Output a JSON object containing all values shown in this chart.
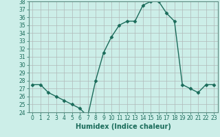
{
  "xlabel": "Humidex (Indice chaleur)",
  "x": [
    0,
    1,
    2,
    3,
    4,
    5,
    6,
    7,
    8,
    9,
    10,
    11,
    12,
    13,
    14,
    15,
    16,
    17,
    18,
    19,
    20,
    21,
    22,
    23
  ],
  "y": [
    27.5,
    27.5,
    26.5,
    26.0,
    25.5,
    25.0,
    24.5,
    23.5,
    28.0,
    31.5,
    33.5,
    35.0,
    35.5,
    35.5,
    37.5,
    38.0,
    38.0,
    36.5,
    35.5,
    27.5,
    27.0,
    26.5,
    27.5,
    27.5
  ],
  "ylim": [
    24,
    38
  ],
  "xlim_min": -0.5,
  "xlim_max": 23.5,
  "yticks": [
    24,
    25,
    26,
    27,
    28,
    29,
    30,
    31,
    32,
    33,
    34,
    35,
    36,
    37,
    38
  ],
  "xticks": [
    0,
    1,
    2,
    3,
    4,
    5,
    6,
    7,
    8,
    9,
    10,
    11,
    12,
    13,
    14,
    15,
    16,
    17,
    18,
    19,
    20,
    21,
    22,
    23
  ],
  "line_color": "#1a6b5a",
  "marker": "D",
  "marker_size": 2.5,
  "bg_color": "#cceee8",
  "grid_color": "#b0b8b8",
  "tick_fontsize": 5.5,
  "label_fontsize": 7,
  "tick_color": "#1a6b5a",
  "spine_color": "#5a8a80"
}
